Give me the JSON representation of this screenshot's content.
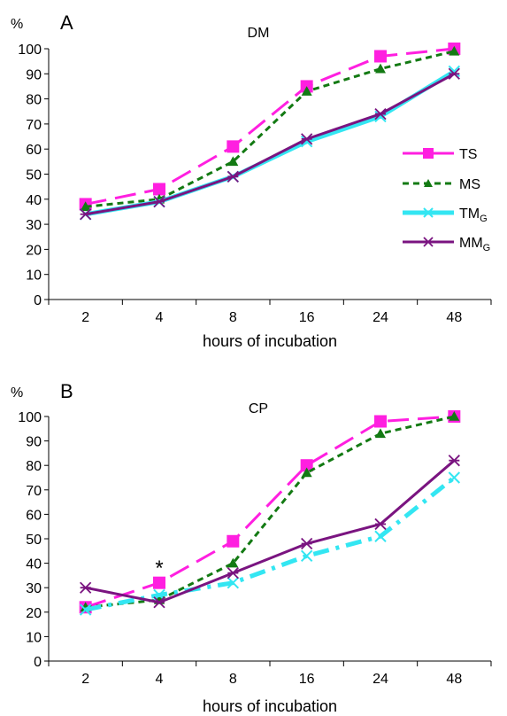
{
  "chart_data": [
    {
      "panel_letter": "A",
      "type": "line",
      "title": "DM",
      "ylabel": "%",
      "xlabel": "hours of incubation",
      "categories": [
        "2",
        "4",
        "8",
        "16",
        "24",
        "48"
      ],
      "ylim": [
        0,
        100
      ],
      "yticks": [
        "0",
        "10",
        "20",
        "30",
        "40",
        "50",
        "60",
        "70",
        "80",
        "90",
        "100"
      ],
      "grid": false,
      "legend_position": "right",
      "series": [
        {
          "name": "TS",
          "sub": "",
          "values": [
            38,
            44,
            61,
            85,
            97,
            100
          ],
          "color": "#ff1fe0",
          "marker": "square",
          "dash": "24 10",
          "width": 3
        },
        {
          "name": "MS",
          "sub": "",
          "values": [
            37,
            40,
            55,
            83,
            92,
            99
          ],
          "color": "#137a13",
          "marker": "triangle",
          "dash": "7 5",
          "width": 3
        },
        {
          "name": "TM",
          "sub": "G",
          "values": [
            34,
            39,
            49,
            63,
            73,
            91
          ],
          "color": "#33e6f2",
          "marker": "x",
          "dash": "",
          "width": 5
        },
        {
          "name": "MM",
          "sub": "G",
          "values": [
            34,
            39,
            49,
            64,
            74,
            90
          ],
          "color": "#7a1480",
          "marker": "asterisk",
          "dash": "",
          "width": 3
        }
      ],
      "annotations": []
    },
    {
      "panel_letter": "B",
      "type": "line",
      "title": "CP",
      "ylabel": "%",
      "xlabel": "hours of incubation",
      "categories": [
        "2",
        "4",
        "8",
        "16",
        "24",
        "48"
      ],
      "ylim": [
        0,
        100
      ],
      "yticks": [
        "0",
        "10",
        "20",
        "30",
        "40",
        "50",
        "60",
        "70",
        "80",
        "90",
        "100"
      ],
      "grid": false,
      "legend_position": "none",
      "series": [
        {
          "name": "TS",
          "sub": "",
          "values": [
            22,
            32,
            49,
            80,
            98,
            100
          ],
          "color": "#ff1fe0",
          "marker": "square",
          "dash": "24 10",
          "width": 3
        },
        {
          "name": "MS",
          "sub": "",
          "values": [
            22,
            25,
            40,
            77,
            93,
            100
          ],
          "color": "#137a13",
          "marker": "triangle",
          "dash": "7 5",
          "width": 3
        },
        {
          "name": "TM",
          "sub": "G",
          "values": [
            21,
            27,
            32,
            43,
            51,
            75
          ],
          "color": "#33e6f2",
          "marker": "x",
          "dash": "18 8 4 8",
          "width": 5
        },
        {
          "name": "MM",
          "sub": "G",
          "values": [
            30,
            24,
            36,
            48,
            56,
            82
          ],
          "color": "#7a1480",
          "marker": "asterisk",
          "dash": "",
          "width": 3
        }
      ],
      "annotations": [
        {
          "text": "*",
          "category": "4",
          "y": 38
        }
      ]
    }
  ]
}
